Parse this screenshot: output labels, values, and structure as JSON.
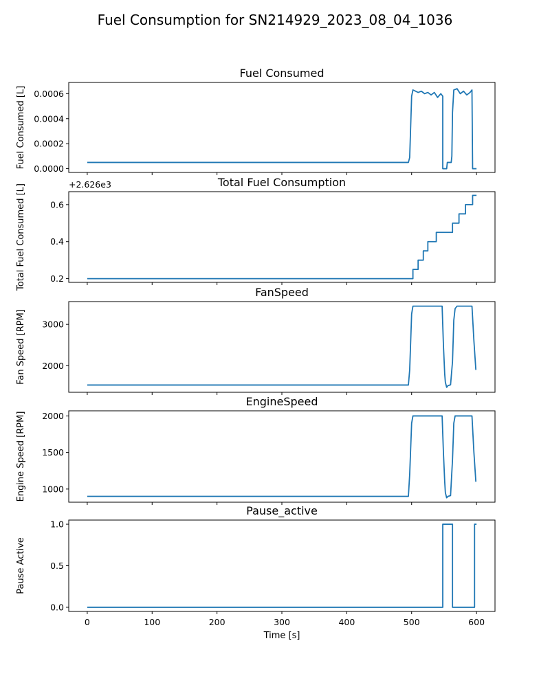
{
  "title": "Fuel Consumption for SN214929_2023_08_04_1036",
  "x_label": "Time [s]",
  "x_ticks": [
    "0",
    "100",
    "200",
    "300",
    "400",
    "500",
    "600"
  ],
  "colors": {
    "series": "#1f77b4"
  },
  "chart_data": [
    {
      "type": "line",
      "title": "Fuel Consumed",
      "ylabel": "Fuel Consumed [L]",
      "ylim": [
        -3e-05,
        0.00069
      ],
      "yticks": [
        "0.0000",
        "0.0002",
        "0.0004",
        "0.0006"
      ],
      "ytick_values": [
        0,
        0.0002,
        0.0004,
        0.0006
      ],
      "offset_label": "",
      "x": [
        0,
        100,
        200,
        300,
        400,
        495,
        497,
        500,
        502,
        506,
        510,
        515,
        520,
        525,
        530,
        535,
        540,
        545,
        548,
        548,
        554,
        555,
        556,
        561,
        562,
        563,
        565,
        570,
        575,
        580,
        585,
        590,
        593,
        594,
        600
      ],
      "y": [
        5e-05,
        5e-05,
        5e-05,
        5e-05,
        5e-05,
        5e-05,
        9e-05,
        0.00058,
        0.00063,
        0.00062,
        0.00061,
        0.00062,
        0.0006,
        0.00061,
        0.00059,
        0.00061,
        0.00057,
        0.0006,
        0.00058,
        0.0,
        0.0,
        5e-05,
        5e-05,
        5e-05,
        0.0001,
        0.00045,
        0.00063,
        0.00064,
        0.0006,
        0.00062,
        0.00059,
        0.00061,
        0.00063,
        0.0,
        0.0
      ]
    },
    {
      "type": "line",
      "title": "Total Fuel Consumption",
      "ylabel": "Total Fuel Consumed [L]",
      "ylim": [
        2626.18,
        2626.67
      ],
      "yticks": [
        "0.2",
        "0.4",
        "0.6"
      ],
      "ytick_values": [
        2626.2,
        2626.4,
        2626.6
      ],
      "offset_label": "+2.626e3",
      "x": [
        0,
        502,
        502,
        510,
        510,
        518,
        518,
        525,
        525,
        538,
        538,
        563,
        563,
        573,
        573,
        583,
        583,
        594,
        594,
        600
      ],
      "y": [
        2626.2,
        2626.2,
        2626.25,
        2626.25,
        2626.3,
        2626.3,
        2626.35,
        2626.35,
        2626.4,
        2626.4,
        2626.45,
        2626.45,
        2626.5,
        2626.5,
        2626.55,
        2626.55,
        2626.6,
        2626.6,
        2626.65,
        2626.65
      ]
    },
    {
      "type": "line",
      "title": "FanSpeed",
      "ylabel": "Fan Speed [RPM]",
      "ylim": [
        1360,
        3550
      ],
      "yticks": [
        "2000",
        "3000"
      ],
      "ytick_values": [
        2000,
        3000
      ],
      "offset_label": "",
      "x": [
        0,
        100,
        200,
        300,
        400,
        495,
        497,
        500,
        502,
        510,
        520,
        530,
        540,
        547,
        549,
        551,
        552,
        554,
        556,
        560,
        563,
        565,
        567,
        570,
        575,
        580,
        585,
        590,
        593,
        596,
        599
      ],
      "y": [
        1535,
        1535,
        1535,
        1535,
        1535,
        1535,
        1900,
        3250,
        3440,
        3440,
        3440,
        3440,
        3440,
        3440,
        2500,
        1800,
        1600,
        1480,
        1520,
        1540,
        2100,
        3100,
        3380,
        3440,
        3440,
        3440,
        3440,
        3440,
        3440,
        2600,
        1900
      ]
    },
    {
      "type": "line",
      "title": "EngineSpeed",
      "ylabel": "Engine Speed [RPM]",
      "ylim": [
        820,
        2070
      ],
      "yticks": [
        "1000",
        "1500",
        "2000"
      ],
      "ytick_values": [
        1000,
        1500,
        2000
      ],
      "offset_label": "",
      "x": [
        0,
        100,
        200,
        300,
        400,
        495,
        497,
        500,
        502,
        510,
        520,
        530,
        540,
        547,
        549,
        551,
        552,
        554,
        556,
        560,
        563,
        565,
        567,
        570,
        575,
        580,
        585,
        590,
        593,
        596,
        599
      ],
      "y": [
        900,
        900,
        900,
        900,
        900,
        900,
        1200,
        1900,
        2000,
        2000,
        2000,
        2000,
        2000,
        2000,
        1500,
        1100,
        950,
        880,
        900,
        910,
        1400,
        1900,
        2000,
        2000,
        2000,
        2000,
        2000,
        2000,
        2000,
        1500,
        1100
      ]
    },
    {
      "type": "line",
      "title": "Pause_active",
      "ylabel": "Pause Active",
      "ylim": [
        -0.05,
        1.05
      ],
      "yticks": [
        "0.0",
        "0.5",
        "1.0"
      ],
      "ytick_values": [
        0,
        0.5,
        1
      ],
      "offset_label": "",
      "x": [
        0,
        548,
        548,
        563,
        563,
        597,
        597,
        600
      ],
      "y": [
        0,
        0,
        1,
        1,
        0,
        0,
        1,
        1
      ]
    }
  ]
}
